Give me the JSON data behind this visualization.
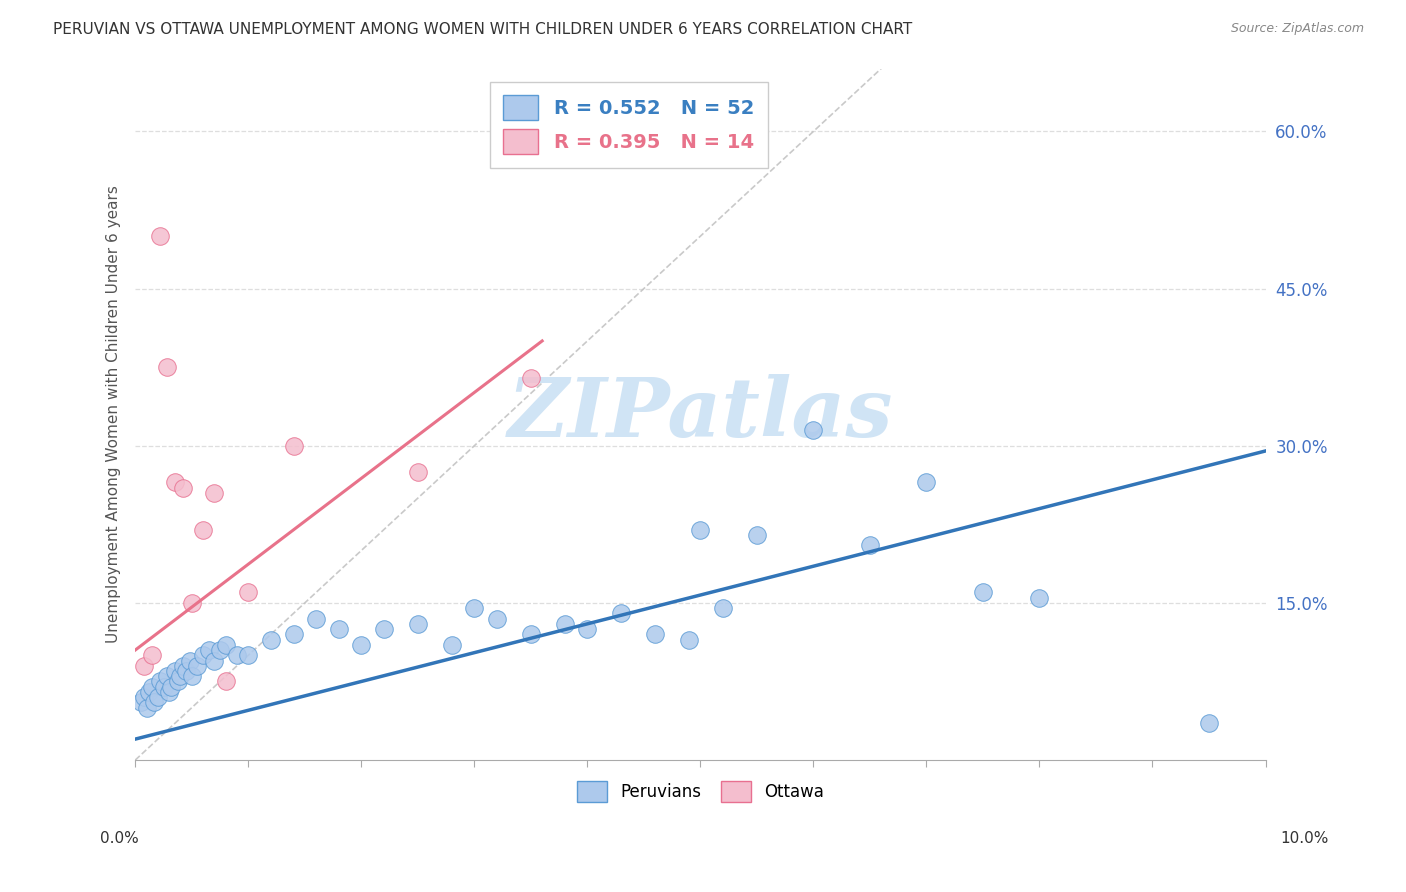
{
  "title": "PERUVIAN VS OTTAWA UNEMPLOYMENT AMONG WOMEN WITH CHILDREN UNDER 6 YEARS CORRELATION CHART",
  "source": "Source: ZipAtlas.com",
  "ylabel": "Unemployment Among Women with Children Under 6 years",
  "legend_label1": "Peruvians",
  "legend_label2": "Ottawa",
  "r1": 0.552,
  "n1": 52,
  "r2": 0.395,
  "n2": 14,
  "xlim": [
    0.0,
    10.0
  ],
  "ylim": [
    0.0,
    66.0
  ],
  "ytick_vals": [
    15,
    30,
    45,
    60
  ],
  "ytick_labels": [
    "15.0%",
    "30.0%",
    "45.0%",
    "60.0%"
  ],
  "color_blue_fill": "#adc9ec",
  "color_blue_edge": "#5b9bd5",
  "color_pink_fill": "#f4bece",
  "color_pink_edge": "#e87090",
  "color_blue_line": "#3275b8",
  "color_pink_line": "#e8728a",
  "color_diag": "#c0c0c0",
  "watermark_color": "#d0e4f5",
  "background": "#ffffff",
  "peruvian_x": [
    0.05,
    0.08,
    0.1,
    0.12,
    0.15,
    0.17,
    0.2,
    0.22,
    0.25,
    0.28,
    0.3,
    0.32,
    0.35,
    0.38,
    0.4,
    0.42,
    0.45,
    0.48,
    0.5,
    0.55,
    0.6,
    0.65,
    0.7,
    0.75,
    0.8,
    0.9,
    1.0,
    1.2,
    1.4,
    1.6,
    1.8,
    2.0,
    2.2,
    2.5,
    2.8,
    3.0,
    3.2,
    3.5,
    3.8,
    4.0,
    4.3,
    4.6,
    4.9,
    5.0,
    5.2,
    5.5,
    6.0,
    6.5,
    7.0,
    7.5,
    8.0,
    9.5
  ],
  "peruvian_y": [
    5.5,
    6.0,
    5.0,
    6.5,
    7.0,
    5.5,
    6.0,
    7.5,
    7.0,
    8.0,
    6.5,
    7.0,
    8.5,
    7.5,
    8.0,
    9.0,
    8.5,
    9.5,
    8.0,
    9.0,
    10.0,
    10.5,
    9.5,
    10.5,
    11.0,
    10.0,
    10.0,
    11.5,
    12.0,
    13.5,
    12.5,
    11.0,
    12.5,
    13.0,
    11.0,
    14.5,
    13.5,
    12.0,
    13.0,
    12.5,
    14.0,
    12.0,
    11.5,
    22.0,
    14.5,
    21.5,
    31.5,
    20.5,
    26.5,
    16.0,
    15.5,
    3.5
  ],
  "ottawa_x": [
    0.08,
    0.15,
    0.22,
    0.28,
    0.35,
    0.42,
    0.5,
    0.6,
    0.7,
    0.8,
    1.0,
    1.4,
    2.5,
    3.5
  ],
  "ottawa_y": [
    9.0,
    10.0,
    50.0,
    37.5,
    26.5,
    26.0,
    15.0,
    22.0,
    25.5,
    7.5,
    16.0,
    30.0,
    27.5,
    36.5
  ],
  "blue_trend_x": [
    0,
    10
  ],
  "blue_trend_y": [
    2.0,
    29.5
  ],
  "pink_trend_x": [
    0,
    3.6
  ],
  "pink_trend_y": [
    10.5,
    40.0
  ]
}
